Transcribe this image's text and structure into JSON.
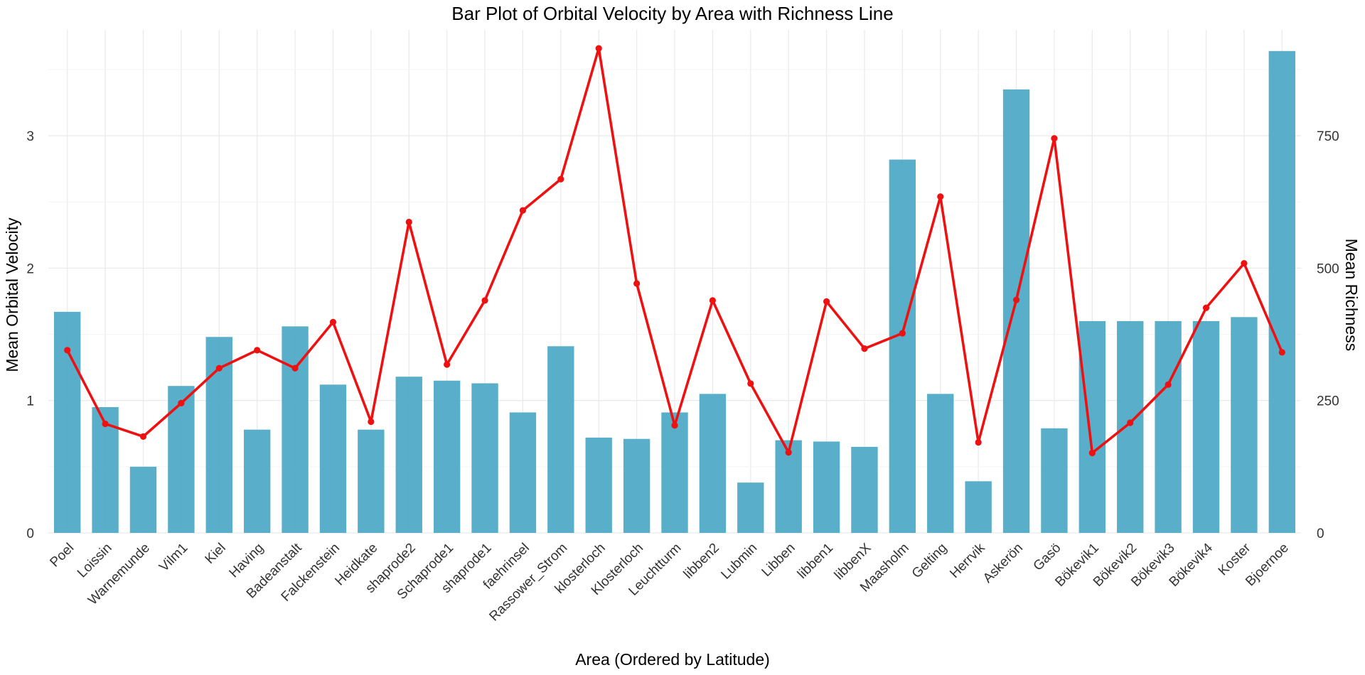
{
  "chart_data": {
    "type": "bar",
    "title": "Bar Plot of Orbital Velocity by Area with Richness Line",
    "xlabel": "Area (Ordered by Latitude)",
    "ylabel": "Mean Orbital Velocity",
    "y2label": "Mean Richness",
    "ylim": [
      0,
      3.8
    ],
    "y2lim": [
      0,
      950
    ],
    "yticks": [
      "0",
      "1",
      "2",
      "3"
    ],
    "y2ticks": [
      "0",
      "250",
      "500",
      "750"
    ],
    "grid": true,
    "bar_color": "#4BA7C4",
    "line_color": "#EE1111",
    "categories": [
      "Poel",
      "Loissin",
      "Warnemunde",
      "Vilm1",
      "Kiel",
      "Having",
      "Badeanstalt",
      "Falckenstein",
      "Heidkate",
      "shaprode2",
      "Schaprode1",
      "shaprode1",
      "faehrinsel",
      "Rassower_Strom",
      "klosterloch",
      "Klosterloch",
      "Leuchtturm",
      "libben2",
      "Lubmin",
      "Libben",
      "libben1",
      "libbenX",
      "Maasholm",
      "Gelting",
      "Herrvik",
      "Askerön",
      "Gasö",
      "Bökevik1",
      "Bökevik2",
      "Bökevik3",
      "Bökevik4",
      "Koster",
      "Bjoernoe"
    ],
    "series": [
      {
        "type": "bar",
        "axis": "left",
        "values": [
          1.67,
          0.95,
          0.5,
          1.11,
          1.48,
          0.78,
          1.56,
          1.12,
          0.78,
          1.18,
          1.15,
          1.13,
          0.91,
          1.41,
          0.72,
          0.71,
          0.91,
          1.05,
          0.38,
          0.7,
          0.69,
          0.65,
          2.82,
          1.05,
          0.39,
          3.35,
          0.79,
          1.6,
          1.6,
          1.6,
          1.6,
          1.63,
          3.64
        ]
      },
      {
        "type": "line",
        "axis": "right",
        "values": [
          345,
          206,
          182,
          245,
          311,
          345,
          311,
          398,
          210,
          587,
          318,
          439,
          609,
          668,
          915,
          471,
          203,
          439,
          282,
          152,
          437,
          348,
          377,
          635,
          171,
          440,
          745,
          151,
          208,
          280,
          425,
          509,
          341
        ]
      }
    ]
  }
}
